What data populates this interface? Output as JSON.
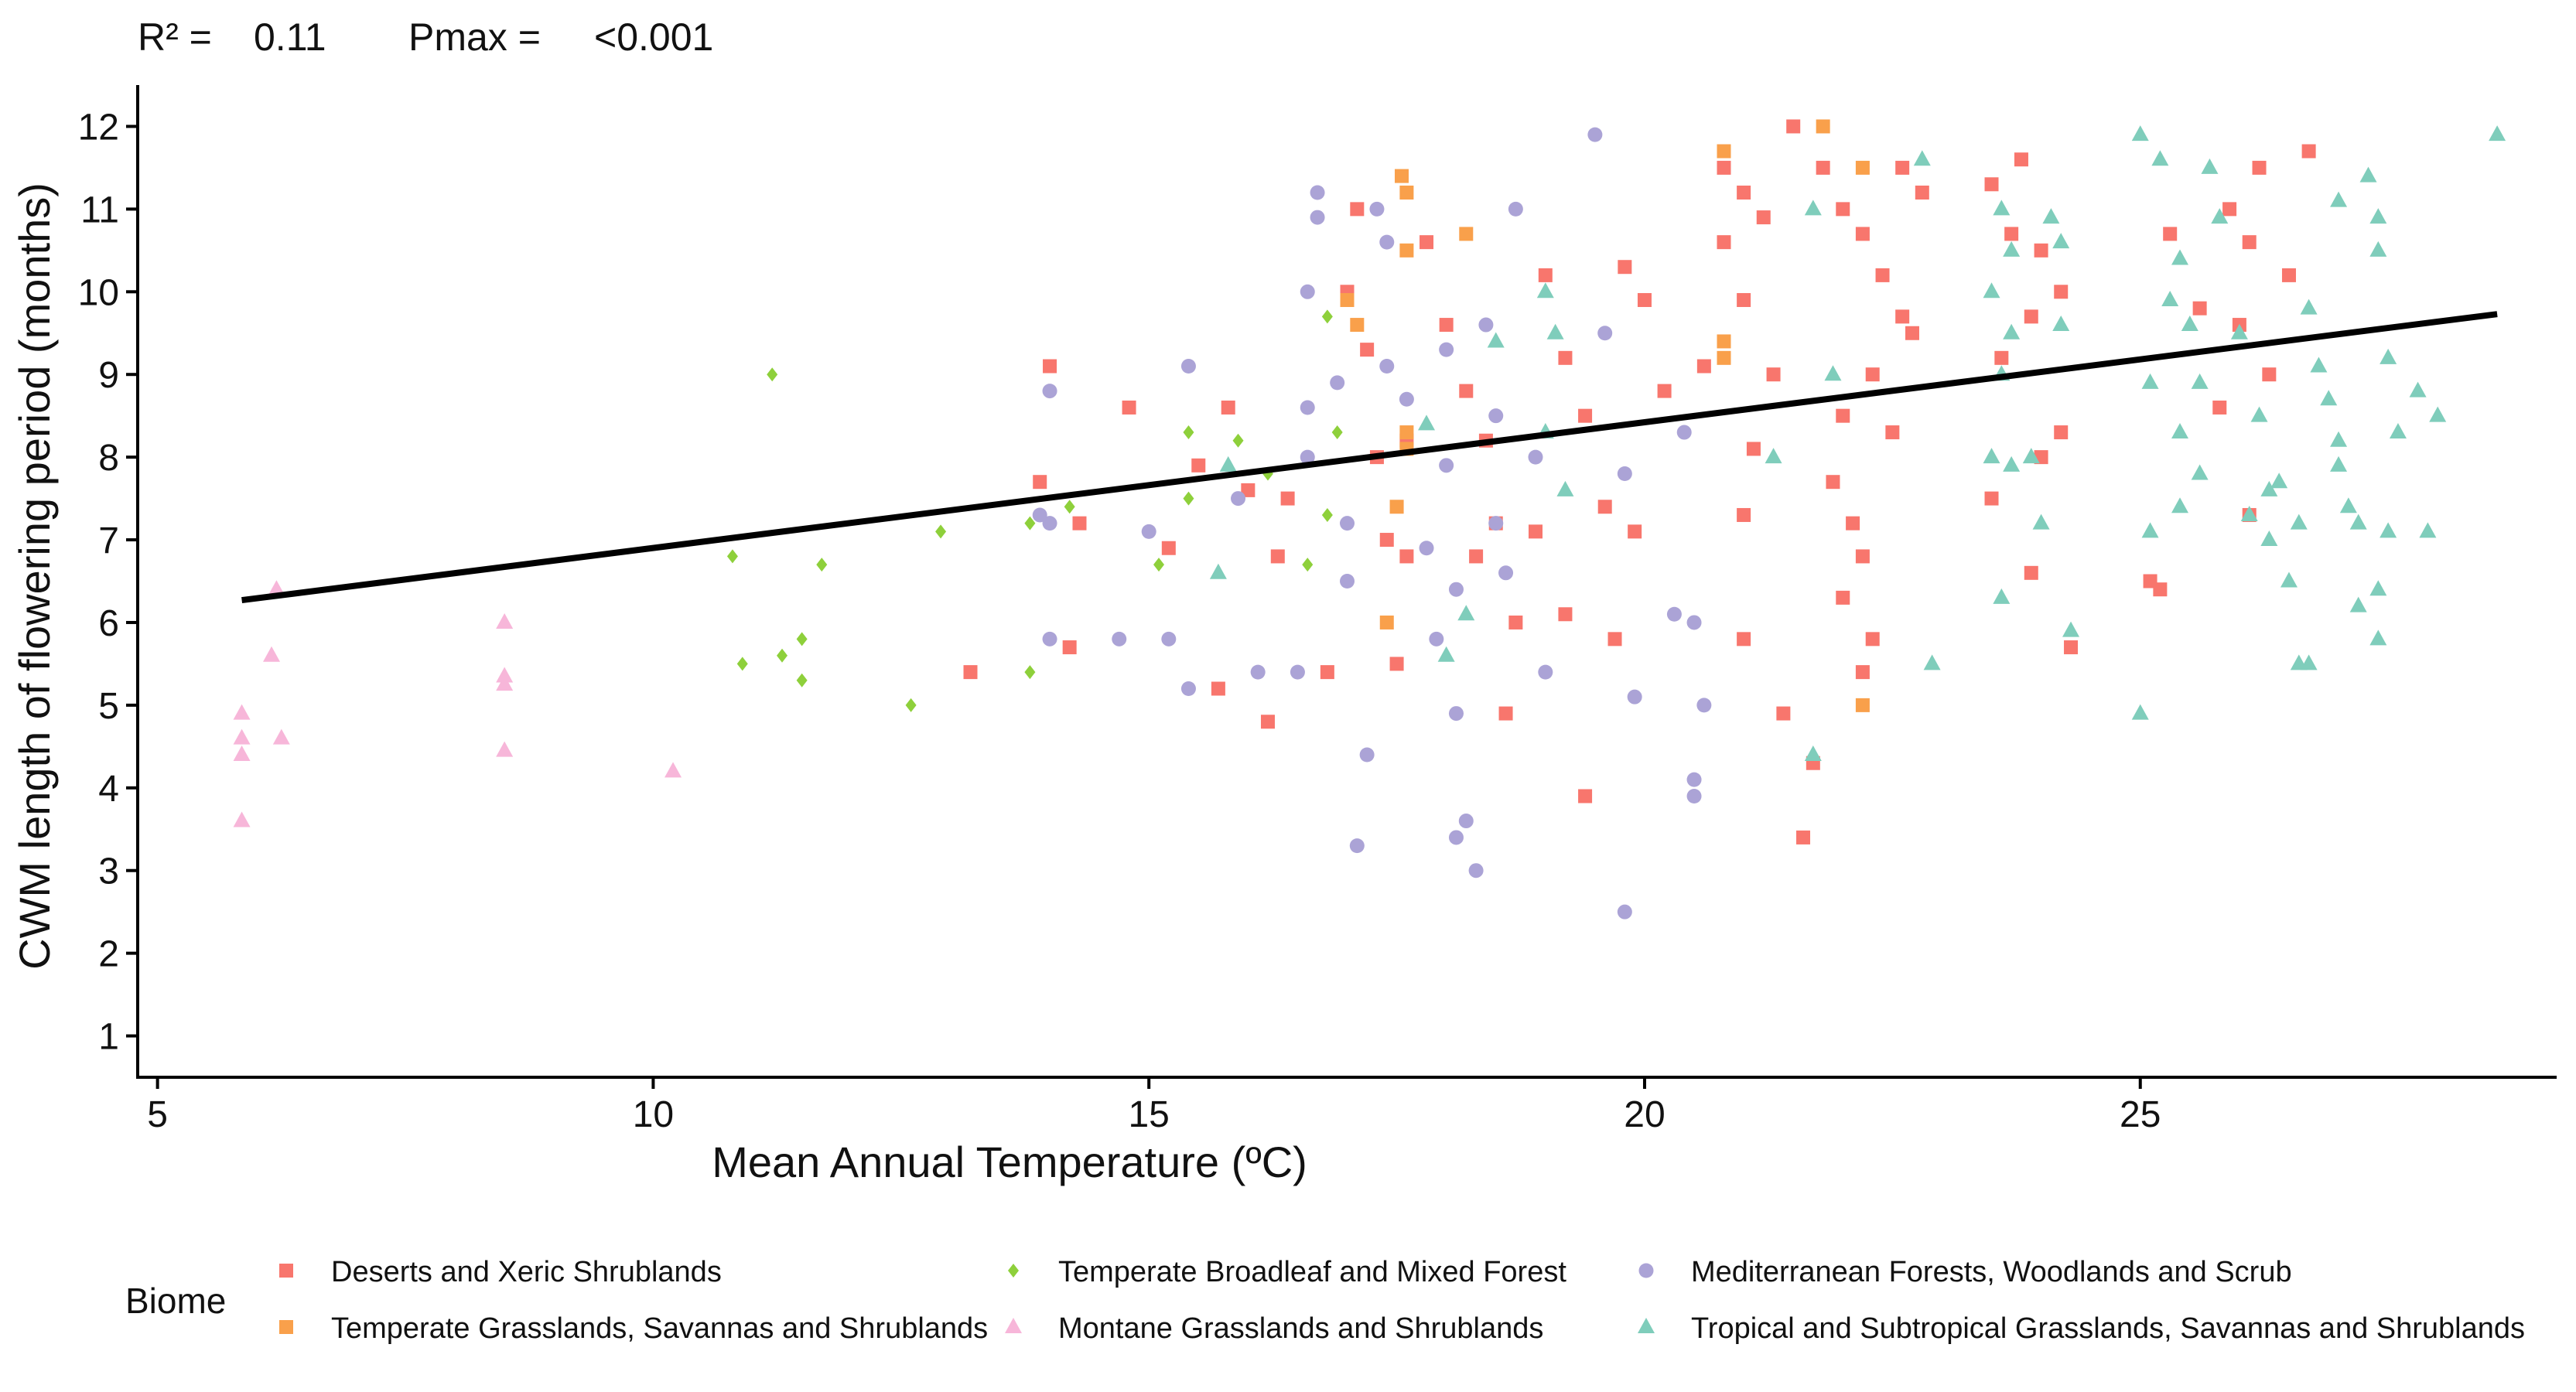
{
  "annotation": {
    "r2_label": "R² =",
    "r2_value": "0.11",
    "p_label": "Pmax =",
    "p_value": "<0.001"
  },
  "chart_data": {
    "type": "scatter",
    "xlabel": "Mean Annual Temperature (ºC)",
    "ylabel": "CWM length of flowering period (months)",
    "xlim": [
      4.8,
      29.2
    ],
    "ylim": [
      0.5,
      12.5
    ],
    "xticks": [
      5,
      10,
      15,
      20,
      25
    ],
    "yticks": [
      1,
      2,
      3,
      4,
      5,
      6,
      7,
      8,
      9,
      10,
      11,
      12
    ],
    "grid": false,
    "legend_position": "bottom",
    "legend_title": "Biome",
    "trend_line": {
      "x": [
        5.85,
        28.6
      ],
      "y": [
        6.27,
        9.73
      ],
      "color": "#000000"
    },
    "series": [
      {
        "name": "Deserts and Xeric Shrublands",
        "color": "#F8766D",
        "marker": "square",
        "points": [
          [
            14.0,
            9.1
          ],
          [
            13.9,
            7.7
          ],
          [
            14.3,
            7.2
          ],
          [
            14.2,
            5.7
          ],
          [
            13.2,
            5.4
          ],
          [
            15.2,
            6.9
          ],
          [
            14.8,
            8.6
          ],
          [
            15.5,
            7.9
          ],
          [
            15.8,
            8.6
          ],
          [
            16.0,
            7.6
          ],
          [
            15.7,
            5.2
          ],
          [
            16.2,
            4.8
          ],
          [
            16.4,
            7.5
          ],
          [
            16.8,
            5.4
          ],
          [
            16.3,
            6.8
          ],
          [
            17.1,
            11.0
          ],
          [
            17.0,
            10.0
          ],
          [
            17.2,
            9.3
          ],
          [
            17.3,
            8.0
          ],
          [
            17.6,
            8.2
          ],
          [
            17.4,
            7.0
          ],
          [
            17.5,
            5.5
          ],
          [
            17.6,
            6.8
          ],
          [
            17.8,
            10.6
          ],
          [
            18.0,
            9.6
          ],
          [
            18.2,
            8.8
          ],
          [
            18.4,
            8.2
          ],
          [
            18.5,
            7.2
          ],
          [
            18.3,
            6.8
          ],
          [
            18.7,
            6.0
          ],
          [
            18.9,
            7.1
          ],
          [
            18.6,
            4.9
          ],
          [
            19.0,
            10.2
          ],
          [
            19.2,
            9.2
          ],
          [
            19.4,
            8.5
          ],
          [
            19.6,
            7.4
          ],
          [
            19.2,
            6.1
          ],
          [
            19.4,
            3.9
          ],
          [
            19.7,
            5.8
          ],
          [
            20.0,
            9.9
          ],
          [
            20.2,
            8.8
          ],
          [
            19.9,
            7.1
          ],
          [
            19.8,
            10.3
          ],
          [
            20.6,
            9.1
          ],
          [
            20.8,
            10.6
          ],
          [
            20.8,
            11.5
          ],
          [
            21.0,
            11.2
          ],
          [
            21.2,
            10.9
          ],
          [
            21.0,
            9.9
          ],
          [
            21.3,
            9.0
          ],
          [
            21.1,
            8.1
          ],
          [
            21.0,
            7.3
          ],
          [
            21.0,
            5.8
          ],
          [
            21.4,
            4.9
          ],
          [
            21.6,
            3.4
          ],
          [
            21.7,
            4.3
          ],
          [
            21.5,
            12.0
          ],
          [
            21.8,
            11.5
          ],
          [
            22.0,
            11.0
          ],
          [
            22.2,
            10.7
          ],
          [
            22.4,
            10.2
          ],
          [
            22.6,
            9.7
          ],
          [
            22.3,
            9.0
          ],
          [
            22.0,
            8.5
          ],
          [
            21.9,
            7.7
          ],
          [
            22.1,
            7.2
          ],
          [
            22.2,
            6.8
          ],
          [
            22.0,
            6.3
          ],
          [
            22.3,
            5.8
          ],
          [
            22.2,
            5.4
          ],
          [
            22.6,
            11.5
          ],
          [
            22.8,
            11.2
          ],
          [
            22.7,
            9.5
          ],
          [
            22.5,
            8.3
          ],
          [
            23.5,
            11.3
          ],
          [
            23.7,
            10.7
          ],
          [
            23.8,
            11.6
          ],
          [
            24.0,
            10.5
          ],
          [
            23.9,
            9.7
          ],
          [
            23.6,
            9.2
          ],
          [
            24.0,
            8.0
          ],
          [
            23.5,
            7.5
          ],
          [
            23.9,
            6.6
          ],
          [
            24.3,
            5.7
          ],
          [
            24.2,
            10.0
          ],
          [
            24.2,
            8.3
          ],
          [
            25.1,
            6.5
          ],
          [
            25.2,
            6.4
          ],
          [
            25.3,
            10.7
          ],
          [
            25.6,
            9.8
          ],
          [
            25.8,
            8.6
          ],
          [
            25.9,
            11.0
          ],
          [
            26.1,
            10.6
          ],
          [
            26.0,
            9.6
          ],
          [
            26.3,
            9.0
          ],
          [
            26.1,
            7.3
          ],
          [
            26.2,
            11.5
          ],
          [
            26.5,
            10.2
          ],
          [
            26.7,
            11.7
          ]
        ]
      },
      {
        "name": "Montane Grasslands and Shrublands",
        "color": "#F7B6D9",
        "marker": "triangle",
        "points": [
          [
            5.85,
            4.9
          ],
          [
            5.85,
            4.6
          ],
          [
            5.85,
            4.4
          ],
          [
            5.85,
            3.6
          ],
          [
            6.2,
            6.4
          ],
          [
            6.15,
            5.6
          ],
          [
            6.25,
            4.6
          ],
          [
            8.5,
            6.0
          ],
          [
            8.5,
            5.35
          ],
          [
            8.5,
            5.25
          ],
          [
            8.5,
            4.45
          ],
          [
            10.2,
            4.2
          ]
        ]
      },
      {
        "name": "Temperate Grasslands, Savannas and Shrublands",
        "color": "#F9A04B",
        "marker": "square",
        "points": [
          [
            17.0,
            9.9
          ],
          [
            17.1,
            9.6
          ],
          [
            17.55,
            11.4
          ],
          [
            17.6,
            11.2
          ],
          [
            17.6,
            10.5
          ],
          [
            17.6,
            8.3
          ],
          [
            17.6,
            8.1
          ],
          [
            17.5,
            7.4
          ],
          [
            17.4,
            6.0
          ],
          [
            18.2,
            10.7
          ],
          [
            20.8,
            11.7
          ],
          [
            20.8,
            9.4
          ],
          [
            20.8,
            9.2
          ],
          [
            21.8,
            12.0
          ],
          [
            22.2,
            11.5
          ],
          [
            22.2,
            5.0
          ]
        ]
      },
      {
        "name": "Mediterranean Forests, Woodlands and Scrub",
        "color": "#ABA3D6",
        "marker": "circle",
        "points": [
          [
            13.9,
            7.3
          ],
          [
            14.0,
            7.2
          ],
          [
            14.0,
            8.8
          ],
          [
            14.0,
            5.8
          ],
          [
            14.7,
            5.8
          ],
          [
            15.0,
            7.1
          ],
          [
            15.2,
            5.8
          ],
          [
            15.4,
            9.1
          ],
          [
            15.4,
            5.2
          ],
          [
            15.9,
            7.5
          ],
          [
            16.1,
            5.4
          ],
          [
            16.5,
            5.4
          ],
          [
            16.6,
            8.0
          ],
          [
            16.6,
            10.0
          ],
          [
            16.7,
            11.2
          ],
          [
            16.7,
            10.9
          ],
          [
            16.6,
            8.6
          ],
          [
            16.9,
            8.9
          ],
          [
            17.0,
            7.2
          ],
          [
            17.0,
            6.5
          ],
          [
            17.1,
            3.3
          ],
          [
            17.2,
            4.4
          ],
          [
            17.3,
            11.0
          ],
          [
            17.4,
            10.6
          ],
          [
            17.4,
            9.1
          ],
          [
            17.6,
            8.7
          ],
          [
            17.8,
            6.9
          ],
          [
            17.9,
            5.8
          ],
          [
            18.0,
            9.3
          ],
          [
            18.0,
            7.9
          ],
          [
            18.1,
            6.4
          ],
          [
            18.1,
            4.9
          ],
          [
            18.1,
            3.4
          ],
          [
            18.2,
            3.6
          ],
          [
            18.3,
            3.0
          ],
          [
            18.4,
            9.6
          ],
          [
            18.5,
            8.5
          ],
          [
            18.5,
            7.2
          ],
          [
            18.6,
            6.6
          ],
          [
            18.7,
            11.0
          ],
          [
            18.9,
            8.0
          ],
          [
            19.0,
            5.4
          ],
          [
            19.5,
            11.9
          ],
          [
            19.6,
            9.5
          ],
          [
            19.8,
            7.8
          ],
          [
            19.8,
            2.5
          ],
          [
            19.9,
            5.1
          ],
          [
            20.3,
            6.1
          ],
          [
            20.5,
            6.0
          ],
          [
            20.5,
            4.1
          ],
          [
            20.5,
            3.9
          ],
          [
            20.6,
            5.0
          ],
          [
            20.4,
            8.3
          ]
        ]
      },
      {
        "name": "Temperate Broadleaf and Mixed Forest",
        "color": "#8ED03B",
        "marker": "diamond",
        "points": [
          [
            10.8,
            6.8
          ],
          [
            10.9,
            5.5
          ],
          [
            11.2,
            9.0
          ],
          [
            11.3,
            5.6
          ],
          [
            11.5,
            5.3
          ],
          [
            11.5,
            5.8
          ],
          [
            11.7,
            6.7
          ],
          [
            12.6,
            5.0
          ],
          [
            12.9,
            7.1
          ],
          [
            13.8,
            7.2
          ],
          [
            13.8,
            5.4
          ],
          [
            14.2,
            7.4
          ],
          [
            15.1,
            6.7
          ],
          [
            15.4,
            8.3
          ],
          [
            15.4,
            7.5
          ],
          [
            15.9,
            8.2
          ],
          [
            16.2,
            7.8
          ],
          [
            16.6,
            6.7
          ],
          [
            16.9,
            8.3
          ],
          [
            16.8,
            9.7
          ],
          [
            16.8,
            7.3
          ]
        ]
      },
      {
        "name": "Tropical and Subtropical Grasslands, Savannas and Shrublands",
        "color": "#7FCDBB",
        "marker": "triangle",
        "points": [
          [
            15.7,
            6.6
          ],
          [
            15.8,
            7.9
          ],
          [
            17.8,
            8.4
          ],
          [
            18.0,
            5.6
          ],
          [
            18.2,
            6.1
          ],
          [
            18.5,
            9.4
          ],
          [
            19.0,
            10.0
          ],
          [
            19.1,
            9.5
          ],
          [
            19.0,
            8.3
          ],
          [
            19.2,
            7.6
          ],
          [
            21.7,
            4.4
          ],
          [
            21.7,
            11.0
          ],
          [
            21.9,
            9.0
          ],
          [
            21.3,
            8.0
          ],
          [
            22.8,
            11.6
          ],
          [
            22.9,
            5.5
          ],
          [
            23.6,
            11.0
          ],
          [
            23.7,
            10.5
          ],
          [
            23.5,
            10.0
          ],
          [
            23.7,
            9.5
          ],
          [
            23.6,
            9.0
          ],
          [
            23.5,
            8.0
          ],
          [
            23.7,
            7.9
          ],
          [
            23.6,
            6.3
          ],
          [
            23.9,
            8.0
          ],
          [
            24.0,
            7.2
          ],
          [
            24.1,
            10.9
          ],
          [
            24.2,
            10.6
          ],
          [
            24.2,
            9.6
          ],
          [
            24.3,
            5.9
          ],
          [
            25.0,
            11.9
          ],
          [
            25.2,
            11.6
          ],
          [
            25.4,
            10.4
          ],
          [
            25.5,
            9.6
          ],
          [
            25.1,
            8.9
          ],
          [
            25.4,
            8.3
          ],
          [
            25.6,
            7.8
          ],
          [
            25.1,
            7.1
          ],
          [
            25.4,
            7.4
          ],
          [
            25.0,
            4.9
          ],
          [
            25.7,
            11.5
          ],
          [
            25.8,
            10.9
          ],
          [
            26.0,
            9.5
          ],
          [
            26.2,
            8.5
          ],
          [
            26.3,
            7.6
          ],
          [
            26.1,
            7.3
          ],
          [
            26.3,
            7.0
          ],
          [
            26.5,
            6.5
          ],
          [
            26.6,
            5.5
          ],
          [
            26.7,
            9.8
          ],
          [
            26.8,
            9.1
          ],
          [
            26.9,
            8.7
          ],
          [
            27.0,
            8.2
          ],
          [
            27.0,
            7.9
          ],
          [
            27.1,
            7.4
          ],
          [
            27.2,
            7.2
          ],
          [
            27.2,
            6.2
          ],
          [
            27.3,
            11.4
          ],
          [
            27.4,
            10.9
          ],
          [
            27.4,
            10.5
          ],
          [
            27.5,
            9.2
          ],
          [
            27.5,
            7.1
          ],
          [
            27.4,
            6.4
          ],
          [
            27.4,
            5.8
          ],
          [
            27.8,
            8.8
          ],
          [
            27.6,
            8.3
          ],
          [
            28.0,
            8.5
          ],
          [
            27.9,
            7.1
          ],
          [
            28.6,
            11.9
          ],
          [
            27.0,
            11.1
          ],
          [
            26.6,
            7.2
          ],
          [
            26.4,
            7.7
          ],
          [
            25.6,
            8.9
          ],
          [
            25.3,
            9.9
          ],
          [
            26.7,
            5.5
          ]
        ]
      }
    ]
  }
}
